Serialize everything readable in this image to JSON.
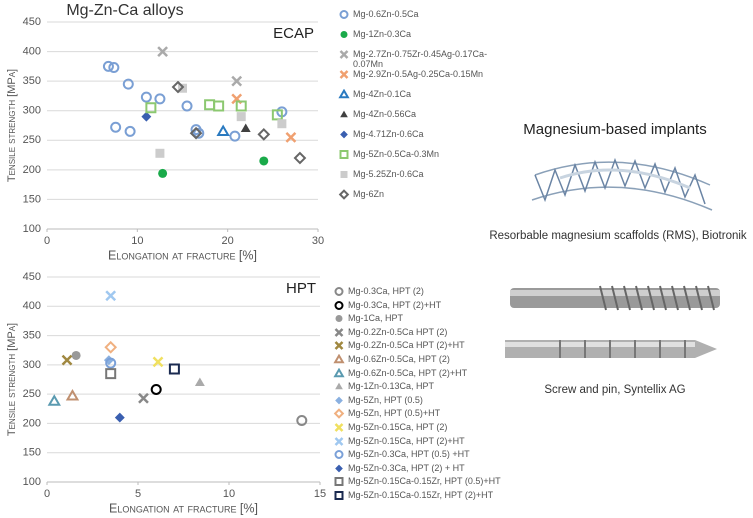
{
  "figure_title": "Mg-Zn-Ca alloys",
  "implants": {
    "title": "Magnesium-based implants",
    "captions": [
      "Resorbable magnesium scaffolds (RMS), Biotronik",
      "Screw and pin, Syntellix AG"
    ]
  },
  "chart_data": [
    {
      "type": "scatter",
      "annotation": "ECAP",
      "x_label": "Elongation at fracture [%]",
      "y_label": "Tensile strength [MPa]",
      "xlim": [
        0,
        30
      ],
      "xticks": [
        0,
        10,
        20,
        30
      ],
      "ylim": [
        100,
        450
      ],
      "yticks": [
        100,
        150,
        200,
        250,
        300,
        350,
        400,
        450
      ],
      "grid": true,
      "series": [
        {
          "name": "Mg-0.6Zn-0.5Ca",
          "color": "#7a9fd4",
          "marker": "circle-open",
          "x": [
            6.8,
            7.4,
            9,
            7.6,
            9.2,
            11,
            12.5,
            15.5,
            16.5,
            16.8,
            20.8,
            26
          ],
          "values": [
            375,
            373,
            345,
            272,
            265,
            323,
            320,
            308,
            268,
            262,
            257,
            298
          ]
        },
        {
          "name": "Mg-1Zn-0.3Ca",
          "color": "#1aaa4a",
          "marker": "circle",
          "x": [
            12.8,
            24
          ],
          "values": [
            194,
            215
          ]
        },
        {
          "name": "Mg-2.7Zn-0.75Zr-0.45Ag-0.17Ca-0.07Mn",
          "color": "#aaaaaa",
          "marker": "x",
          "x": [
            12.8,
            21
          ],
          "values": [
            400,
            350
          ]
        },
        {
          "name": "Mg-2.9Zn-0.5Ag-0.25Ca-0.15Mn",
          "color": "#f0a070",
          "marker": "x",
          "x": [
            21,
            27
          ],
          "values": [
            320,
            255
          ]
        },
        {
          "name": "Mg-4Zn-0.1Ca",
          "color": "#2a7ac0",
          "marker": "triangle-open",
          "x": [
            19.5
          ],
          "values": [
            265
          ]
        },
        {
          "name": "Mg-4Zn-0.56Ca",
          "color": "#404040",
          "marker": "triangle",
          "x": [
            22
          ],
          "values": [
            270
          ]
        },
        {
          "name": "Mg-4.71Zn-0.6Ca",
          "color": "#3a5fb0",
          "marker": "diamond",
          "x": [
            11
          ],
          "values": [
            290
          ]
        },
        {
          "name": "Mg-5Zn-0.5Ca-0.3Mn",
          "color": "#8cc870",
          "marker": "square-open",
          "x": [
            11.5,
            18,
            19,
            21.5,
            25.5
          ],
          "values": [
            305,
            310,
            308,
            308,
            293
          ]
        },
        {
          "name": "Mg-5.25Zn-0.6Ca",
          "color": "#cccccc",
          "marker": "square",
          "x": [
            12.5,
            15,
            21.5,
            26
          ],
          "values": [
            228,
            338,
            290,
            278
          ]
        },
        {
          "name": "Mg-6Zn",
          "color": "#666666",
          "marker": "diamond-open",
          "x": [
            14.5,
            16.5,
            24,
            28
          ],
          "values": [
            340,
            262,
            260,
            220
          ]
        }
      ]
    },
    {
      "type": "scatter",
      "annotation": "HPT",
      "x_label": "Elongation at fracture [%]",
      "y_label": "Tensile strength [MPa]",
      "xlim": [
        0,
        15
      ],
      "xticks": [
        0,
        5,
        10,
        15
      ],
      "ylim": [
        100,
        450
      ],
      "yticks": [
        100,
        150,
        200,
        250,
        300,
        350,
        400,
        450
      ],
      "grid": true,
      "series": [
        {
          "name": "Mg-0.3Ca, HPT (2)",
          "color": "#888888",
          "marker": "circle-open",
          "x": [
            14
          ],
          "values": [
            205
          ]
        },
        {
          "name": "Mg-0.3Ca, HPT (2)+HT",
          "color": "#000000",
          "marker": "circle-open",
          "x": [
            6
          ],
          "values": [
            258
          ]
        },
        {
          "name": "Mg-1Ca, HPT",
          "color": "#999999",
          "marker": "circle",
          "x": [
            1.6
          ],
          "values": [
            316
          ]
        },
        {
          "name": "Mg-0.2Zn-0.5Ca HPT (2)",
          "color": "#888888",
          "marker": "x",
          "x": [
            5.3
          ],
          "values": [
            243
          ]
        },
        {
          "name": "Mg-0.2Zn-0.5Ca HPT (2)+HT",
          "color": "#a08840",
          "marker": "x",
          "x": [
            1.1
          ],
          "values": [
            308
          ]
        },
        {
          "name": "Mg-0.6Zn-0.5Ca, HPT (2)",
          "color": "#c09070",
          "marker": "triangle-open",
          "x": [
            1.4
          ],
          "values": [
            247
          ]
        },
        {
          "name": "Mg-0.6Zn-0.5Ca, HPT (2)+HT",
          "color": "#5a9ab0",
          "marker": "triangle-open",
          "x": [
            0.4
          ],
          "values": [
            238
          ]
        },
        {
          "name": "Mg-1Zn-0.13Ca, HPT",
          "color": "#aaaaaa",
          "marker": "triangle",
          "x": [
            8.4
          ],
          "values": [
            270
          ]
        },
        {
          "name": "Mg-5Zn, HPT (0.5)",
          "color": "#8ab0e0",
          "marker": "diamond",
          "x": [
            3.4
          ],
          "values": [
            308
          ]
        },
        {
          "name": "Mg-5Zn, HPT (0.5)+HT",
          "color": "#f0b080",
          "marker": "diamond-open",
          "x": [
            3.5
          ],
          "values": [
            330
          ]
        },
        {
          "name": "Mg-5Zn-0.15Ca, HPT (2)",
          "color": "#f0e060",
          "marker": "x",
          "x": [
            6.1
          ],
          "values": [
            305
          ]
        },
        {
          "name": "Mg-5Zn-0.15Ca, HPT (2)+HT",
          "color": "#a0c8f0",
          "marker": "x",
          "x": [
            3.5
          ],
          "values": [
            418
          ]
        },
        {
          "name": "Mg-5Zn-0.3Ca, HPT (0.5) +HT",
          "color": "#7aa0d8",
          "marker": "circle-open",
          "x": [
            3.5
          ],
          "values": [
            303
          ]
        },
        {
          "name": "Mg-5Zn-0.3Ca, HPT (2) + HT",
          "color": "#3a5fb0",
          "marker": "diamond",
          "x": [
            4
          ],
          "values": [
            210
          ]
        },
        {
          "name": "Mg-5Zn-0.15Ca-0.15Zr, HPT (0.5)+HT",
          "color": "#777777",
          "marker": "square-open",
          "x": [
            3.5
          ],
          "values": [
            285
          ]
        },
        {
          "name": "Mg-5Zn-0.15Ca-0.15Zr, HPT (2)+HT",
          "color": "#1a2a50",
          "marker": "square-open",
          "x": [
            7
          ],
          "values": [
            293
          ]
        }
      ]
    }
  ]
}
